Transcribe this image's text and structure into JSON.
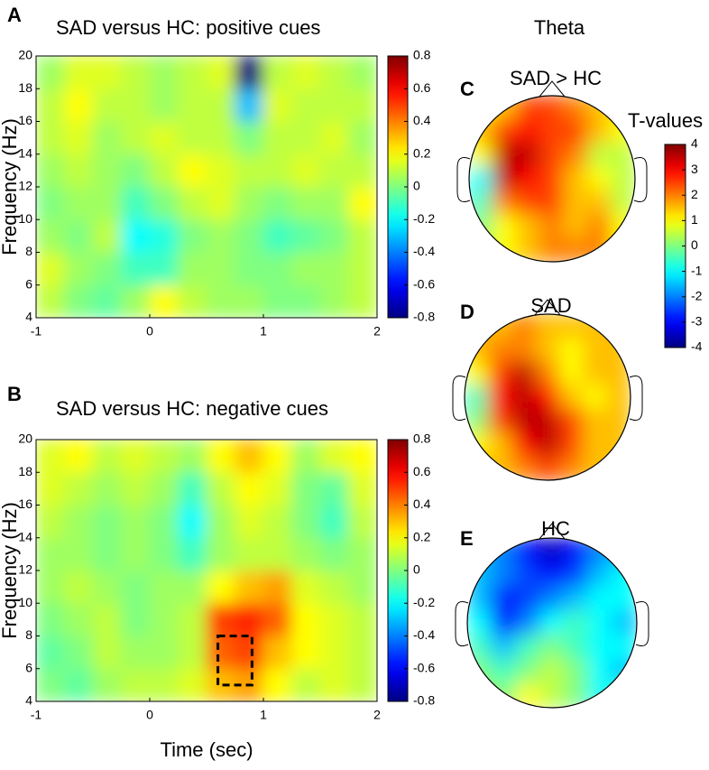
{
  "column_title": "Theta",
  "chart_data": [
    {
      "type": "heatmap",
      "panel": "A",
      "title": "SAD versus HC: positive cues",
      "ylabel": "Frequency (Hz)",
      "x": [
        -0.875,
        -0.625,
        -0.375,
        -0.125,
        0.125,
        0.375,
        0.625,
        0.875,
        1.125,
        1.375,
        1.625,
        1.875
      ],
      "y": [
        5,
        7,
        9,
        11,
        13,
        15,
        17,
        19
      ],
      "values": [
        [
          0.1,
          0,
          -0.05,
          0.05,
          0.2,
          0.1,
          0.05,
          0.05,
          0,
          0,
          0.05,
          0.1
        ],
        [
          0.15,
          0.05,
          0,
          -0.1,
          -0.1,
          0.05,
          0.05,
          0,
          0,
          0.05,
          0.05,
          0.1
        ],
        [
          0.05,
          0,
          0.1,
          -0.2,
          -0.15,
          0,
          0.05,
          0,
          -0.1,
          -0.05,
          0,
          0.1
        ],
        [
          0,
          0.05,
          0.05,
          -0.1,
          0,
          0.1,
          0.15,
          0.05,
          0,
          0.05,
          0.05,
          0.2
        ],
        [
          0.05,
          0.1,
          0.05,
          0,
          0.1,
          0.2,
          0.15,
          0.1,
          0.1,
          0.15,
          0.1,
          0.1
        ],
        [
          0.1,
          0.15,
          0.05,
          0.1,
          0.15,
          0.1,
          0.1,
          0,
          0.1,
          0.1,
          0.15,
          0.05
        ],
        [
          0.1,
          0.2,
          0.1,
          0.1,
          0.05,
          0.1,
          0.1,
          -0.3,
          0.15,
          0.1,
          0.1,
          0.1
        ],
        [
          0.05,
          0.15,
          0.15,
          0.1,
          0.05,
          0.1,
          0.15,
          -0.8,
          0.1,
          0.15,
          0.1,
          0.05
        ]
      ],
      "xlim": [
        -1,
        2
      ],
      "xticks": [
        -1,
        0,
        1,
        2
      ],
      "ylim": [
        4,
        20
      ],
      "yticks": [
        4,
        6,
        8,
        10,
        12,
        14,
        16,
        18,
        20
      ],
      "clim": [
        -0.8,
        0.8
      ],
      "cticks": [
        0.8,
        0.6,
        0.4,
        0.2,
        0,
        -0.2,
        -0.4,
        -0.6,
        -0.8
      ]
    },
    {
      "type": "heatmap",
      "panel": "B",
      "title": "SAD versus HC: negative cues",
      "ylabel": "Frequency (Hz)",
      "xlabel": "Time (sec)",
      "x": [
        -0.875,
        -0.625,
        -0.375,
        -0.125,
        0.125,
        0.375,
        0.625,
        0.875,
        1.125,
        1.375,
        1.625,
        1.875
      ],
      "y": [
        5,
        7,
        9,
        11,
        13,
        15,
        17,
        19
      ],
      "values": [
        [
          0,
          -0.05,
          0.05,
          0.1,
          0.1,
          0.15,
          0.3,
          0.35,
          0.2,
          0.1,
          0.15,
          0.1
        ],
        [
          -0.05,
          0,
          0.1,
          0.05,
          0.05,
          0.1,
          0.45,
          0.5,
          0.3,
          0.2,
          0.15,
          0.1
        ],
        [
          0,
          0.05,
          0.1,
          0,
          0.05,
          0.1,
          0.5,
          0.55,
          0.45,
          0.2,
          0.15,
          0.1
        ],
        [
          0.05,
          0.1,
          0.05,
          0,
          0.05,
          0.05,
          0.2,
          0.3,
          0.35,
          0.15,
          0.1,
          0.05
        ],
        [
          0.05,
          0.05,
          0,
          0.05,
          0,
          -0.1,
          0.05,
          0.1,
          0.1,
          0.05,
          0,
          0.05
        ],
        [
          0.1,
          0.05,
          0,
          0.05,
          0,
          -0.2,
          0.05,
          0.15,
          0.1,
          0,
          -0.1,
          0.1
        ],
        [
          0.15,
          0.1,
          0.05,
          0.1,
          0.05,
          -0.1,
          0.1,
          0.2,
          0.15,
          0,
          -0.05,
          0.15
        ],
        [
          0.15,
          0.2,
          0.1,
          0.15,
          0.1,
          0.05,
          0.2,
          0.3,
          0.2,
          0.05,
          0.15,
          0.2
        ]
      ],
      "xlim": [
        -1,
        2
      ],
      "xticks": [
        -1,
        0,
        1,
        2
      ],
      "ylim": [
        4,
        20
      ],
      "yticks": [
        4,
        6,
        8,
        10,
        12,
        14,
        16,
        18,
        20
      ],
      "clim": [
        -0.8,
        0.8
      ],
      "cticks": [
        0.8,
        0.6,
        0.4,
        0.2,
        0,
        -0.2,
        -0.4,
        -0.6,
        -0.8
      ],
      "highlight": {
        "x": [
          0.6,
          0.9
        ],
        "y": [
          5,
          8
        ]
      }
    },
    {
      "type": "topoplot",
      "panel": "C",
      "title": "SAD > HC",
      "values": [
        [
          1,
          1.5,
          2.5,
          2.5,
          2,
          1.5,
          1
        ],
        [
          1.5,
          2.5,
          3,
          2.5,
          2.5,
          1.5,
          1
        ],
        [
          1,
          3.5,
          3.5,
          2.5,
          2,
          0.5,
          0.5
        ],
        [
          -1,
          3.5,
          3,
          2.5,
          1.5,
          1,
          0.5
        ],
        [
          -0.5,
          2,
          2.5,
          2.5,
          1.5,
          1.5,
          0.5
        ],
        [
          0,
          1,
          1.5,
          2,
          1.5,
          2,
          1
        ],
        [
          0.5,
          1,
          1.5,
          2,
          2,
          2,
          1
        ]
      ],
      "clim": [
        -4,
        4
      ],
      "colorbar": {
        "label": "T-values",
        "ticks": [
          4,
          3,
          2,
          1,
          0,
          -1,
          -2,
          -3,
          -4
        ]
      }
    },
    {
      "type": "topoplot",
      "panel": "D",
      "title": "SAD",
      "values": [
        [
          1.5,
          1.5,
          2,
          1.5,
          1.5,
          1.5,
          1.5
        ],
        [
          1.5,
          2,
          2,
          1.5,
          1,
          1.5,
          1.5
        ],
        [
          1,
          2.5,
          3.5,
          2,
          1,
          1.5,
          1.5
        ],
        [
          -0.5,
          3,
          3.5,
          3,
          1.5,
          1,
          1.5
        ],
        [
          0,
          2.5,
          3.5,
          3.5,
          2.5,
          1.5,
          1.5
        ],
        [
          1,
          1.5,
          3,
          3.5,
          2.5,
          1.5,
          1.5
        ],
        [
          1.5,
          1.5,
          2,
          2.5,
          2,
          1.5,
          1.5
        ]
      ],
      "clim": [
        -4,
        4
      ]
    },
    {
      "type": "topoplot",
      "panel": "E",
      "title": "HC",
      "values": [
        [
          -1.5,
          -2,
          -3,
          -3.5,
          -3,
          -2,
          -1.5
        ],
        [
          -1.5,
          -2,
          -2.5,
          -3,
          -2.5,
          -1.5,
          -1
        ],
        [
          -1.5,
          -3,
          -2.5,
          -2,
          -1.5,
          -1,
          -1
        ],
        [
          -1,
          -3,
          -2,
          -1,
          -0.5,
          -1,
          -1.5
        ],
        [
          -0.5,
          -1.5,
          -0.5,
          0,
          -0.5,
          -1,
          -1
        ],
        [
          0,
          -0.5,
          0,
          0.5,
          0,
          -1,
          -1.5
        ],
        [
          0.5,
          0,
          1,
          0.5,
          0,
          -1,
          -0.5
        ]
      ],
      "clim": [
        -4,
        4
      ]
    }
  ]
}
